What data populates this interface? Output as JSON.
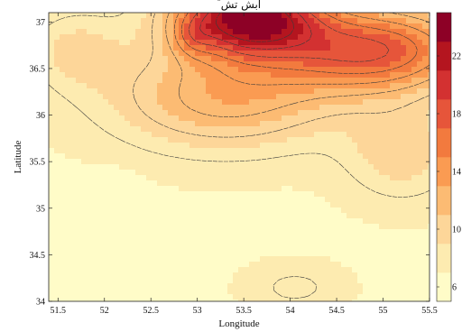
{
  "chart_data": {
    "type": "heatmap",
    "subtype": "filled-contour",
    "title": "ۜ ابش تش",
    "xlabel": "Longitude",
    "ylabel": "Latitude",
    "xlim": [
      51.4,
      55.5
    ],
    "ylim": [
      34.0,
      37.1
    ],
    "x_ticks": [
      "51.5",
      "52",
      "52.5",
      "53",
      "53.5",
      "54",
      "54.5",
      "55",
      "55.5"
    ],
    "y_ticks": [
      "34",
      "34.5",
      "35",
      "35.5",
      "36",
      "36.5",
      "37"
    ],
    "colorbar": {
      "range": [
        5,
        25
      ],
      "tick_labels": [
        "6",
        "10",
        "14",
        "18",
        "22"
      ],
      "palette": [
        "#fffcc8",
        "#fdebb0",
        "#fdd699",
        "#fcbb73",
        "#fa9b52",
        "#f27a3e",
        "#e6553a",
        "#d33131",
        "#b4151f",
        "#8d0126"
      ]
    },
    "levels": [
      8,
      10,
      12,
      14,
      16,
      18,
      20,
      22
    ],
    "field": {
      "base": 6.8,
      "features": [
        {
          "lon": 53.55,
          "lat": 37.05,
          "amp": 17.0,
          "sx": 0.75,
          "sy": 0.4
        },
        {
          "lon": 52.95,
          "lat": 36.85,
          "amp": 3.0,
          "sx": 0.22,
          "sy": 0.22
        },
        {
          "lon": 54.9,
          "lat": 36.7,
          "amp": 11.0,
          "sx": 1.05,
          "sy": 0.45
        },
        {
          "lon": 53.3,
          "lat": 36.2,
          "amp": 6.0,
          "sx": 1.2,
          "sy": 0.55
        },
        {
          "lon": 51.7,
          "lat": 36.7,
          "amp": 2.5,
          "sx": 0.5,
          "sy": 0.4
        },
        {
          "lon": 55.2,
          "lat": 35.6,
          "amp": 3.0,
          "sx": 0.6,
          "sy": 0.5
        },
        {
          "lon": 52.1,
          "lat": 34.9,
          "amp": -1.2,
          "sx": 0.3,
          "sy": 0.4
        },
        {
          "lon": 54.05,
          "lat": 34.15,
          "amp": 1.5,
          "sx": 0.5,
          "sy": 0.25
        }
      ]
    }
  }
}
